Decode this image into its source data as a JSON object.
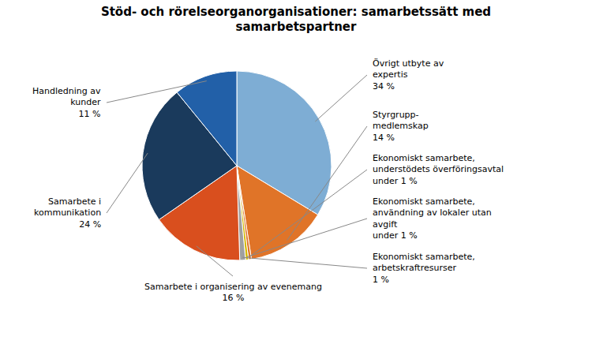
{
  "chart_data": {
    "type": "pie",
    "title": "Stöd- och rörelseorganorganisationer: samarbetssätt med\nsamarbetspartner",
    "categories": [
      "Övrigt utbyte av\nexpertis",
      "Styrgrupp-\nmedlemskap",
      "Ekonomiskt samarbete,\nunderstödets överföringsavtal",
      "Ekonomiskt samarbete,\nanvändning av lokaler utan\navgift",
      "Ekonomiskt samarbete,\narbetskraftresurser",
      "Samarbete i organisering av evenemang",
      "Samarbete i\nkommunikation",
      "Handledning av\nkunder"
    ],
    "values": [
      34,
      14,
      0.5,
      0.5,
      1,
      16,
      24,
      11
    ],
    "value_labels": [
      "34 %",
      "14 %",
      "under 1 %",
      "under 1 %",
      "1 %",
      "16 %",
      "24 %",
      "11 %"
    ],
    "colors": [
      "#7eadd4",
      "#e07428",
      "#e07428",
      "#d4b800",
      "#a0a0a0",
      "#d94f1e",
      "#1a3a5c",
      "#2260a8"
    ],
    "data_labels": true
  }
}
